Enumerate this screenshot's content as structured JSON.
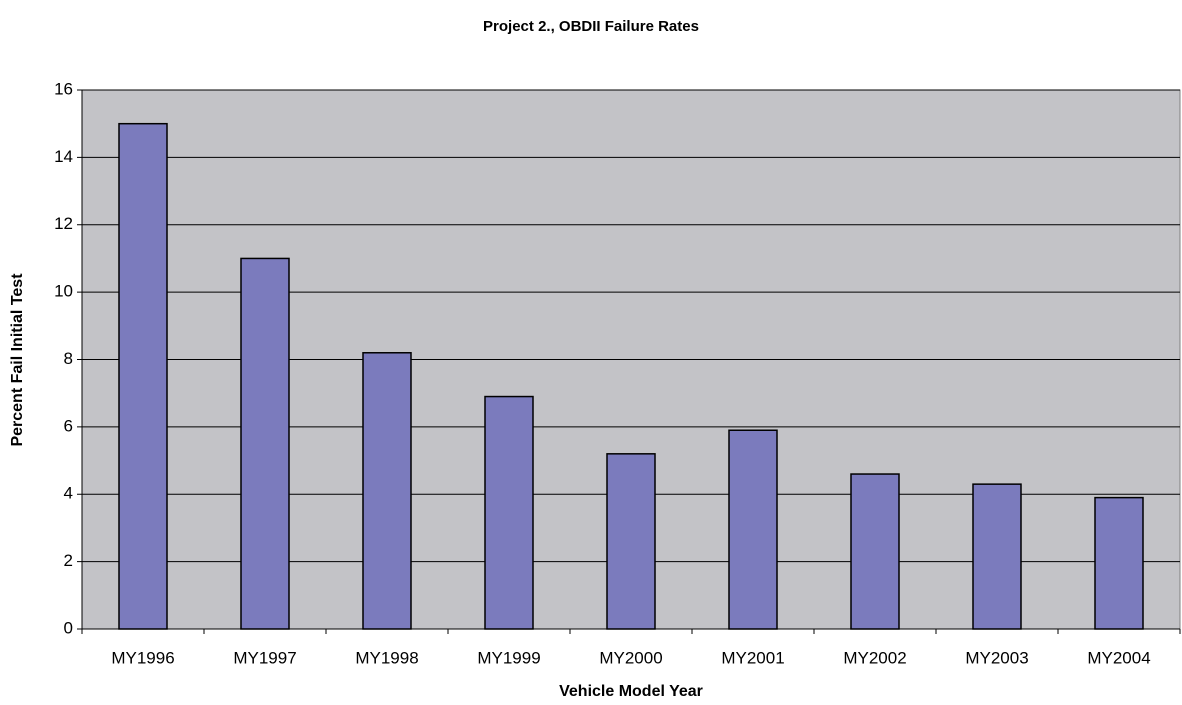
{
  "chart_data": {
    "type": "bar",
    "title": "Project 2., OBDII Failure Rates",
    "x_label": "Vehicle Model Year",
    "y_label": "Percent Fail Initial Test",
    "categories": [
      "MY1996",
      "MY1997",
      "MY1998",
      "MY1999",
      "MY2000",
      "MY2001",
      "MY2002",
      "MY2003",
      "MY2004"
    ],
    "values": [
      15.0,
      11.0,
      8.2,
      6.9,
      5.2,
      5.9,
      4.6,
      4.3,
      3.9
    ],
    "color": "#7b7bbd",
    "plot_background": "#c3c3c7",
    "ylim": [
      0,
      16
    ],
    "yticks": [
      0,
      2,
      4,
      6,
      8,
      10,
      12,
      14,
      16
    ],
    "grid": true
  }
}
